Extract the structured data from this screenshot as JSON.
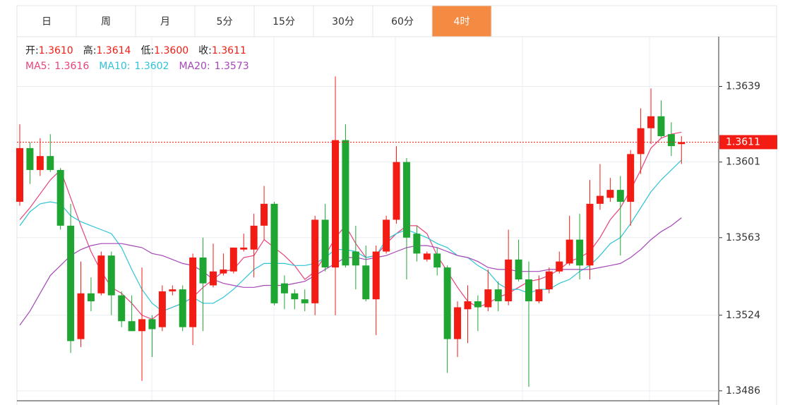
{
  "tabs": {
    "items": [
      "日",
      "周",
      "月",
      "5分",
      "15分",
      "30分",
      "60分",
      "4时"
    ],
    "active": 7
  },
  "chart_data": {
    "type": "candlestick",
    "info": [
      {
        "name": "开:",
        "text": "1.3610"
      },
      {
        "name": "高:",
        "text": "1.3614"
      },
      {
        "name": "低:",
        "text": "1.3600"
      },
      {
        "name": "收:",
        "text": "1.3611"
      }
    ],
    "up_color": "#f21c14",
    "down_color": "#1fa632",
    "last_price": 1.3611,
    "last_price_color": "#f21c14",
    "ylim": [
      1.3481,
      1.3664
    ],
    "yticks": [
      1.3486,
      1.3524,
      1.3563,
      1.3601,
      1.3639
    ],
    "grid": true,
    "candles": [
      {
        "open": 1.3581,
        "high": 1.362,
        "low": 1.3579,
        "close": 1.3608
      },
      {
        "open": 1.3608,
        "high": 1.3611,
        "low": 1.359,
        "close": 1.3597
      },
      {
        "open": 1.3597,
        "high": 1.3613,
        "low": 1.3594,
        "close": 1.3604
      },
      {
        "open": 1.3604,
        "high": 1.3615,
        "low": 1.3596,
        "close": 1.3597
      },
      {
        "open": 1.3597,
        "high": 1.3598,
        "low": 1.3567,
        "close": 1.3569
      },
      {
        "open": 1.3569,
        "high": 1.358,
        "low": 1.3505,
        "close": 1.3511
      },
      {
        "open": 1.3512,
        "high": 1.3551,
        "low": 1.3508,
        "close": 1.3535
      },
      {
        "open": 1.3535,
        "high": 1.3543,
        "low": 1.3526,
        "close": 1.3531
      },
      {
        "open": 1.3535,
        "high": 1.3556,
        "low": 1.3534,
        "close": 1.3554
      },
      {
        "open": 1.3554,
        "high": 1.3556,
        "low": 1.3524,
        "close": 1.3534
      },
      {
        "open": 1.3534,
        "high": 1.3536,
        "low": 1.3518,
        "close": 1.3521
      },
      {
        "open": 1.3521,
        "high": 1.3534,
        "low": 1.3516,
        "close": 1.3516
      },
      {
        "open": 1.3516,
        "high": 1.3548,
        "low": 1.3491,
        "close": 1.3522
      },
      {
        "open": 1.3522,
        "high": 1.3524,
        "low": 1.3503,
        "close": 1.3517
      },
      {
        "open": 1.3518,
        "high": 1.3539,
        "low": 1.3516,
        "close": 1.3536
      },
      {
        "open": 1.3536,
        "high": 1.3539,
        "low": 1.3534,
        "close": 1.3537
      },
      {
        "open": 1.3537,
        "high": 1.3539,
        "low": 1.3516,
        "close": 1.3518
      },
      {
        "open": 1.3518,
        "high": 1.3555,
        "low": 1.3509,
        "close": 1.3553
      },
      {
        "open": 1.3553,
        "high": 1.3563,
        "low": 1.3516,
        "close": 1.354
      },
      {
        "open": 1.3539,
        "high": 1.356,
        "low": 1.3538,
        "close": 1.3546
      },
      {
        "open": 1.3545,
        "high": 1.3555,
        "low": 1.3544,
        "close": 1.3547
      },
      {
        "open": 1.3546,
        "high": 1.3558,
        "low": 1.3545,
        "close": 1.3558
      },
      {
        "open": 1.3557,
        "high": 1.3565,
        "low": 1.3556,
        "close": 1.3558
      },
      {
        "open": 1.3557,
        "high": 1.3575,
        "low": 1.3543,
        "close": 1.3569
      },
      {
        "open": 1.3569,
        "high": 1.3589,
        "low": 1.3562,
        "close": 1.358
      },
      {
        "open": 1.358,
        "high": 1.3581,
        "low": 1.3529,
        "close": 1.353
      },
      {
        "open": 1.354,
        "high": 1.3544,
        "low": 1.3527,
        "close": 1.3535
      },
      {
        "open": 1.3535,
        "high": 1.3537,
        "low": 1.3527,
        "close": 1.3532
      },
      {
        "open": 1.3532,
        "high": 1.3537,
        "low": 1.3526,
        "close": 1.353
      },
      {
        "open": 1.353,
        "high": 1.3574,
        "low": 1.3524,
        "close": 1.3572
      },
      {
        "open": 1.3572,
        "high": 1.358,
        "low": 1.3546,
        "close": 1.3548
      },
      {
        "open": 1.3548,
        "high": 1.3644,
        "low": 1.3524,
        "close": 1.3612
      },
      {
        "open": 1.3612,
        "high": 1.362,
        "low": 1.3548,
        "close": 1.3549
      },
      {
        "open": 1.3556,
        "high": 1.3569,
        "low": 1.3537,
        "close": 1.3549
      },
      {
        "open": 1.3549,
        "high": 1.3559,
        "low": 1.3531,
        "close": 1.3532
      },
      {
        "open": 1.3532,
        "high": 1.3559,
        "low": 1.3514,
        "close": 1.3556
      },
      {
        "open": 1.3556,
        "high": 1.3574,
        "low": 1.3555,
        "close": 1.3572
      },
      {
        "open": 1.3572,
        "high": 1.3609,
        "low": 1.357,
        "close": 1.3601
      },
      {
        "open": 1.3601,
        "high": 1.3603,
        "low": 1.3542,
        "close": 1.3563
      },
      {
        "open": 1.3565,
        "high": 1.3569,
        "low": 1.3551,
        "close": 1.3555
      },
      {
        "open": 1.3552,
        "high": 1.3556,
        "low": 1.3551,
        "close": 1.3555
      },
      {
        "open": 1.3555,
        "high": 1.3558,
        "low": 1.3544,
        "close": 1.3548
      },
      {
        "open": 1.3548,
        "high": 1.3549,
        "low": 1.3495,
        "close": 1.3512
      },
      {
        "open": 1.3512,
        "high": 1.3531,
        "low": 1.3503,
        "close": 1.3528
      },
      {
        "open": 1.3527,
        "high": 1.3539,
        "low": 1.351,
        "close": 1.3531
      },
      {
        "open": 1.3531,
        "high": 1.3534,
        "low": 1.3516,
        "close": 1.3528
      },
      {
        "open": 1.3528,
        "high": 1.3547,
        "low": 1.3526,
        "close": 1.3537
      },
      {
        "open": 1.3537,
        "high": 1.3541,
        "low": 1.3526,
        "close": 1.3531
      },
      {
        "open": 1.3531,
        "high": 1.3567,
        "low": 1.3529,
        "close": 1.3552
      },
      {
        "open": 1.3552,
        "high": 1.3562,
        "low": 1.3541,
        "close": 1.3542
      },
      {
        "open": 1.3542,
        "high": 1.3551,
        "low": 1.3488,
        "close": 1.3531
      },
      {
        "open": 1.3531,
        "high": 1.3544,
        "low": 1.353,
        "close": 1.3537
      },
      {
        "open": 1.3537,
        "high": 1.3548,
        "low": 1.3535,
        "close": 1.3546
      },
      {
        "open": 1.3546,
        "high": 1.3556,
        "low": 1.3545,
        "close": 1.3551
      },
      {
        "open": 1.355,
        "high": 1.3574,
        "low": 1.3549,
        "close": 1.3562
      },
      {
        "open": 1.3562,
        "high": 1.3575,
        "low": 1.3542,
        "close": 1.3549
      },
      {
        "open": 1.3549,
        "high": 1.3592,
        "low": 1.3542,
        "close": 1.358
      },
      {
        "open": 1.358,
        "high": 1.36,
        "low": 1.3577,
        "close": 1.3584
      },
      {
        "open": 1.3583,
        "high": 1.3593,
        "low": 1.3581,
        "close": 1.3587
      },
      {
        "open": 1.3587,
        "high": 1.3594,
        "low": 1.3554,
        "close": 1.3581
      },
      {
        "open": 1.3581,
        "high": 1.3607,
        "low": 1.3569,
        "close": 1.3605
      },
      {
        "open": 1.3605,
        "high": 1.3628,
        "low": 1.3595,
        "close": 1.3618
      },
      {
        "open": 1.3618,
        "high": 1.3638,
        "low": 1.361,
        "close": 1.3624
      },
      {
        "open": 1.3624,
        "high": 1.3632,
        "low": 1.3613,
        "close": 1.3614
      },
      {
        "open": 1.3615,
        "high": 1.3621,
        "low": 1.3604,
        "close": 1.3609
      },
      {
        "open": 1.361,
        "high": 1.3614,
        "low": 1.36,
        "close": 1.3611
      }
    ],
    "series": [
      {
        "name": "MA5:",
        "value_label": "1.3616",
        "color": "#e8437a",
        "values": [
          1.3572,
          1.3578,
          1.3585,
          1.3592,
          1.3597,
          1.3583,
          1.3569,
          1.3556,
          1.3546,
          1.3538,
          1.3535,
          1.353,
          1.3524,
          1.3522,
          1.3526,
          1.3528,
          1.353,
          1.3533,
          1.3538,
          1.3542,
          1.3546,
          1.3547,
          1.3553,
          1.3554,
          1.3562,
          1.3558,
          1.3554,
          1.3549,
          1.3542,
          1.3546,
          1.3554,
          1.3563,
          1.3569,
          1.356,
          1.3553,
          1.3554,
          1.356,
          1.3565,
          1.3569,
          1.3569,
          1.3565,
          1.3554,
          1.3546,
          1.3538,
          1.3531,
          1.3528,
          1.353,
          1.3533,
          1.3535,
          1.3538,
          1.3541,
          1.3542,
          1.3544,
          1.3547,
          1.3551,
          1.3553,
          1.3556,
          1.3563,
          1.3572,
          1.3578,
          1.3587,
          1.3597,
          1.3608,
          1.3613,
          1.3615,
          1.3616
        ]
      },
      {
        "name": "MA10:",
        "value_label": "1.3602",
        "color": "#2ec4d6",
        "values": [
          1.3569,
          1.3576,
          1.358,
          1.3581,
          1.358,
          1.3574,
          1.3571,
          1.3569,
          1.3567,
          1.3565,
          1.3558,
          1.3547,
          1.3537,
          1.353,
          1.3526,
          1.3528,
          1.353,
          1.3533,
          1.353,
          1.353,
          1.3533,
          1.3537,
          1.3542,
          1.3547,
          1.355,
          1.355,
          1.355,
          1.3549,
          1.3549,
          1.355,
          1.3553,
          1.3557,
          1.3557,
          1.3556,
          1.3553,
          1.3554,
          1.3562,
          1.3565,
          1.3567,
          1.3565,
          1.3563,
          1.356,
          1.3558,
          1.3554,
          1.3553,
          1.3549,
          1.3546,
          1.354,
          1.3537,
          1.3537,
          1.3535,
          1.3537,
          1.3537,
          1.354,
          1.3542,
          1.3546,
          1.3549,
          1.3554,
          1.356,
          1.3563,
          1.357,
          1.3578,
          1.3586,
          1.3592,
          1.3597,
          1.3602
        ]
      },
      {
        "name": "MA20:",
        "value_label": "1.3573",
        "color": "#a646b8",
        "values": [
          1.3519,
          1.3526,
          1.3535,
          1.3544,
          1.3549,
          1.3554,
          1.3557,
          1.3559,
          1.356,
          1.356,
          1.356,
          1.3559,
          1.3558,
          1.3555,
          1.3554,
          1.3552,
          1.355,
          1.3549,
          1.3546,
          1.3542,
          1.354,
          1.3539,
          1.3538,
          1.3538,
          1.3539,
          1.3539,
          1.3539,
          1.354,
          1.3541,
          1.3544,
          1.3547,
          1.355,
          1.3553,
          1.3553,
          1.3552,
          1.3553,
          1.3554,
          1.3556,
          1.3558,
          1.3559,
          1.3559,
          1.3558,
          1.3556,
          1.3554,
          1.3553,
          1.3551,
          1.3548,
          1.3547,
          1.3547,
          1.3546,
          1.3546,
          1.3546,
          1.3547,
          1.3547,
          1.3547,
          1.3547,
          1.3547,
          1.3548,
          1.3549,
          1.355,
          1.3553,
          1.3557,
          1.3562,
          1.3566,
          1.3569,
          1.3573
        ]
      }
    ]
  }
}
